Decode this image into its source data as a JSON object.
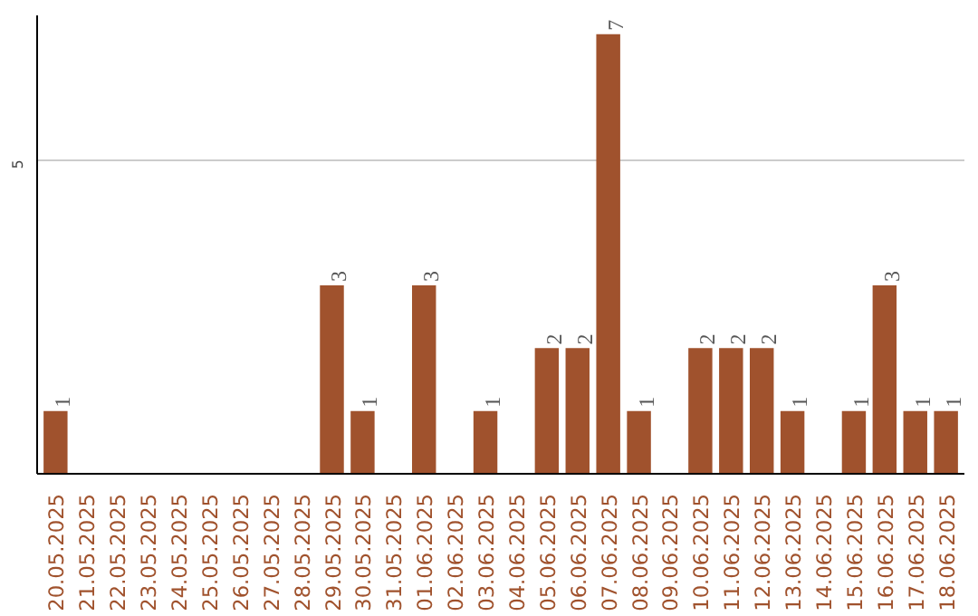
{
  "chart_data": {
    "type": "bar",
    "categories": [
      "20.05.2025",
      "21.05.2025",
      "22.05.2025",
      "23.05.2025",
      "24.05.2025",
      "25.05.2025",
      "26.05.2025",
      "27.05.2025",
      "28.05.2025",
      "29.05.2025",
      "30.05.2025",
      "31.05.2025",
      "01.06.2025",
      "02.06.2025",
      "03.06.2025",
      "04.06.2025",
      "05.06.2025",
      "06.06.2025",
      "07.06.2025",
      "08.06.2025",
      "09.06.2025",
      "10.06.2025",
      "11.06.2025",
      "12.06.2025",
      "13.06.2025",
      "14.06.2025",
      "15.06.2025",
      "16.06.2025",
      "17.06.2025",
      "18.06.2025"
    ],
    "values": [
      1,
      0,
      0,
      0,
      0,
      0,
      0,
      0,
      0,
      3,
      1,
      0,
      3,
      0,
      1,
      0,
      2,
      2,
      7,
      1,
      0,
      2,
      2,
      2,
      1,
      0,
      1,
      3,
      1,
      1
    ],
    "value_labels": [
      "1",
      null,
      null,
      null,
      null,
      null,
      null,
      null,
      null,
      "3",
      "1",
      null,
      "3",
      null,
      "1",
      null,
      "2",
      "2",
      "7",
      "1",
      null,
      "2",
      "2",
      "2",
      "1",
      null,
      "1",
      "3",
      "1",
      "1"
    ],
    "color": "#a0522d",
    "ylim": [
      0,
      7.3
    ],
    "yticks": [
      5
    ],
    "grid": "y"
  }
}
